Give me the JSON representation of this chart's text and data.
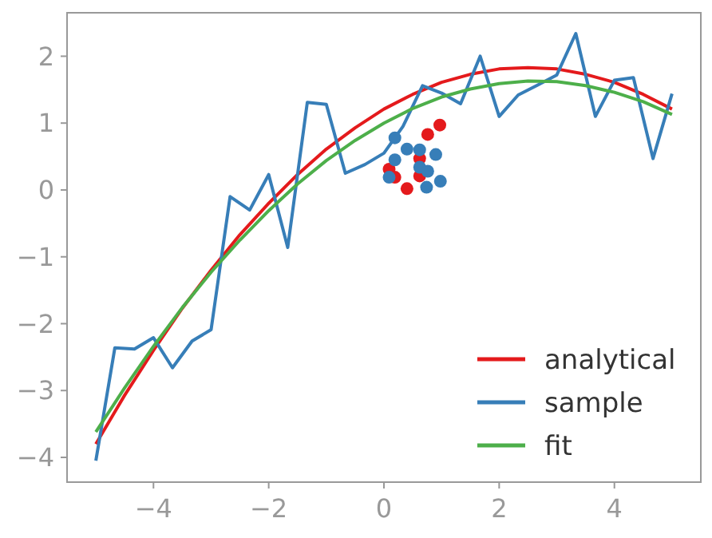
{
  "chart_data": {
    "type": "line",
    "xlim": [
      -5.5,
      5.5
    ],
    "ylim": [
      -4.37,
      2.65
    ],
    "xticks": [
      {
        "value": -4,
        "label": "−4"
      },
      {
        "value": -2,
        "label": "−2"
      },
      0,
      2,
      4
    ],
    "yticks": [
      {
        "value": -4,
        "label": "−4"
      },
      {
        "value": -3,
        "label": "−3"
      },
      {
        "value": -2,
        "label": "−2"
      },
      {
        "value": -1,
        "label": "−1"
      },
      0,
      1,
      2
    ],
    "grid": false,
    "legend": "bottom right",
    "line_style": "solid",
    "series": [
      {
        "name": "analytical",
        "color": "#e41a1c",
        "x": [
          -5,
          -4.5,
          -4,
          -3.5,
          -3,
          -2.5,
          -2,
          -1.5,
          -1,
          -0.5,
          0,
          0.5,
          1,
          1.5,
          2,
          2.5,
          3,
          3.5,
          4,
          4.5,
          5
        ],
        "values": [
          -3.8,
          -3.07,
          -2.4,
          -1.77,
          -1.2,
          -0.67,
          -0.2,
          0.23,
          0.61,
          0.93,
          1.21,
          1.43,
          1.61,
          1.73,
          1.81,
          1.83,
          1.81,
          1.73,
          1.61,
          1.43,
          1.21
        ]
      },
      {
        "name": "sample",
        "color": "#377eb8",
        "x": [
          -5,
          -4.67,
          -4.33,
          -4,
          -3.67,
          -3.33,
          -3,
          -2.67,
          -2.33,
          -2,
          -1.67,
          -1.33,
          -1,
          -0.67,
          -0.33,
          0,
          0.33,
          0.67,
          1,
          1.33,
          1.67,
          2,
          2.33,
          2.67,
          3,
          3.33,
          3.67,
          4,
          4.33,
          4.67,
          5
        ],
        "values": [
          -4.05,
          -2.36,
          -2.38,
          -2.21,
          -2.66,
          -2.26,
          -2.09,
          -0.1,
          -0.3,
          0.23,
          -0.86,
          1.31,
          1.28,
          0.25,
          0.38,
          0.55,
          0.95,
          1.56,
          1.45,
          1.29,
          2.0,
          1.1,
          1.42,
          1.57,
          1.72,
          2.34,
          1.1,
          1.64,
          1.68,
          0.47,
          1.44
        ]
      },
      {
        "name": "fit",
        "color": "#4daf4a",
        "x": [
          -5,
          -4.5,
          -4,
          -3.5,
          -3,
          -2.5,
          -2,
          -1.5,
          -1,
          -0.5,
          0,
          0.5,
          1,
          1.5,
          2,
          2.5,
          3,
          3.5,
          4,
          4.5,
          5
        ],
        "values": [
          -3.62,
          -2.96,
          -2.34,
          -1.76,
          -1.23,
          -0.75,
          -0.31,
          0.09,
          0.44,
          0.74,
          1.0,
          1.22,
          1.39,
          1.51,
          1.59,
          1.63,
          1.62,
          1.56,
          1.46,
          1.32,
          1.13
        ]
      },
      {
        "type": "scatter",
        "marker": "circle",
        "color": "#e41a1c",
        "x": [
          0.97,
          0.76,
          0.09,
          0.19,
          0.62,
          0.62,
          0.4
        ],
        "values": [
          0.97,
          0.83,
          0.31,
          0.19,
          0.47,
          0.21,
          0.02
        ]
      },
      {
        "type": "scatter",
        "marker": "circle",
        "color": "#377eb8",
        "x": [
          0.19,
          0.4,
          0.62,
          0.19,
          0.9,
          0.62,
          0.76,
          0.09,
          0.74,
          0.98
        ],
        "values": [
          0.78,
          0.61,
          0.6,
          0.45,
          0.53,
          0.34,
          0.28,
          0.19,
          0.04,
          0.13
        ]
      }
    ]
  }
}
